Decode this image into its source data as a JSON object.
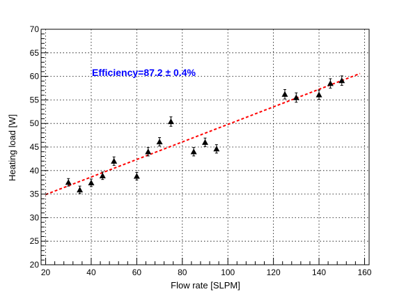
{
  "chart_data": {
    "type": "scatter",
    "title": "",
    "xlabel": "Flow rate [SLPM]",
    "ylabel": "Heating load [W]",
    "xlim": [
      18,
      162
    ],
    "ylim": [
      20,
      70
    ],
    "xticks": [
      20,
      40,
      60,
      80,
      100,
      120,
      140,
      160
    ],
    "yticks": [
      20,
      25,
      30,
      35,
      40,
      45,
      50,
      55,
      60,
      65,
      70
    ],
    "grid": true,
    "annotation": "Efficiency=87.2 ± 0.4%",
    "series": [
      {
        "marker": "filled-triangle",
        "color": "#000000",
        "points": [
          {
            "x": 30,
            "y": 37.5,
            "err": 0.8
          },
          {
            "x": 35,
            "y": 35.9,
            "err": 0.8
          },
          {
            "x": 40,
            "y": 37.4,
            "err": 0.8
          },
          {
            "x": 45,
            "y": 38.9,
            "err": 0.8
          },
          {
            "x": 50,
            "y": 42.0,
            "err": 0.9
          },
          {
            "x": 60,
            "y": 38.8,
            "err": 0.8
          },
          {
            "x": 65,
            "y": 44.0,
            "err": 0.9
          },
          {
            "x": 70,
            "y": 46.1,
            "err": 0.9
          },
          {
            "x": 75,
            "y": 50.4,
            "err": 1.0
          },
          {
            "x": 85,
            "y": 44.0,
            "err": 0.9
          },
          {
            "x": 90,
            "y": 46.0,
            "err": 0.9
          },
          {
            "x": 95,
            "y": 44.6,
            "err": 0.9
          },
          {
            "x": 125,
            "y": 56.2,
            "err": 1.0
          },
          {
            "x": 130,
            "y": 55.5,
            "err": 1.0
          },
          {
            "x": 140,
            "y": 56.1,
            "err": 1.0
          },
          {
            "x": 145,
            "y": 58.5,
            "err": 1.0
          },
          {
            "x": 150,
            "y": 59.1,
            "err": 1.0
          }
        ]
      }
    ],
    "fit": {
      "style": "dashed",
      "color": "#ff0000",
      "x": [
        20,
        158
      ],
      "y": [
        34.9,
        60.6
      ]
    },
    "colors": {
      "annotation": "#0000ff",
      "grid": "#000000",
      "axes": "#000000"
    }
  }
}
